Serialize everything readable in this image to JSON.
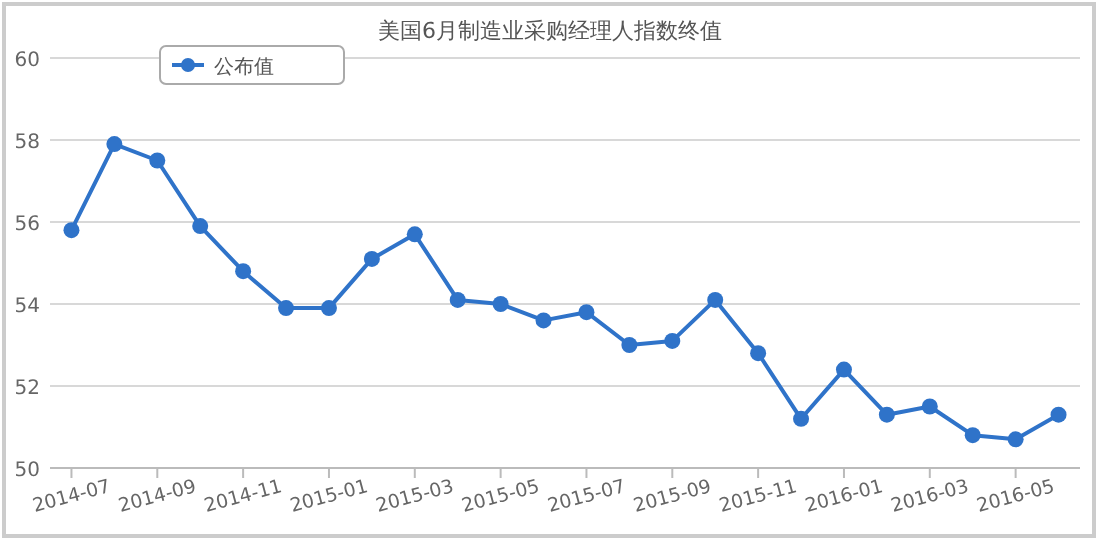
{
  "chart_data": {
    "type": "line",
    "title": "美国6月制造业采购经理人指数终值",
    "categories": [
      "2014-07",
      null,
      "2014-09",
      null,
      "2014-11",
      null,
      "2015-01",
      null,
      "2015-03",
      null,
      "2015-05",
      null,
      "2015-07",
      null,
      "2015-09",
      null,
      "2015-11",
      null,
      "2016-01",
      null,
      "2016-03",
      null,
      "2016-05",
      null
    ],
    "series": [
      {
        "name": "公布值",
        "color": "#2f73c9",
        "values": [
          55.8,
          57.9,
          57.5,
          55.9,
          54.8,
          53.9,
          53.9,
          55.1,
          55.7,
          54.1,
          54.0,
          53.6,
          53.8,
          53.0,
          53.1,
          54.1,
          52.8,
          51.2,
          52.4,
          51.3,
          51.5,
          50.8,
          50.7,
          51.3
        ]
      }
    ],
    "ylim": [
      50,
      60
    ],
    "yticks": [
      50,
      52,
      54,
      56,
      58,
      60
    ],
    "grid": "y",
    "legend": "top left",
    "marker": "circle"
  }
}
